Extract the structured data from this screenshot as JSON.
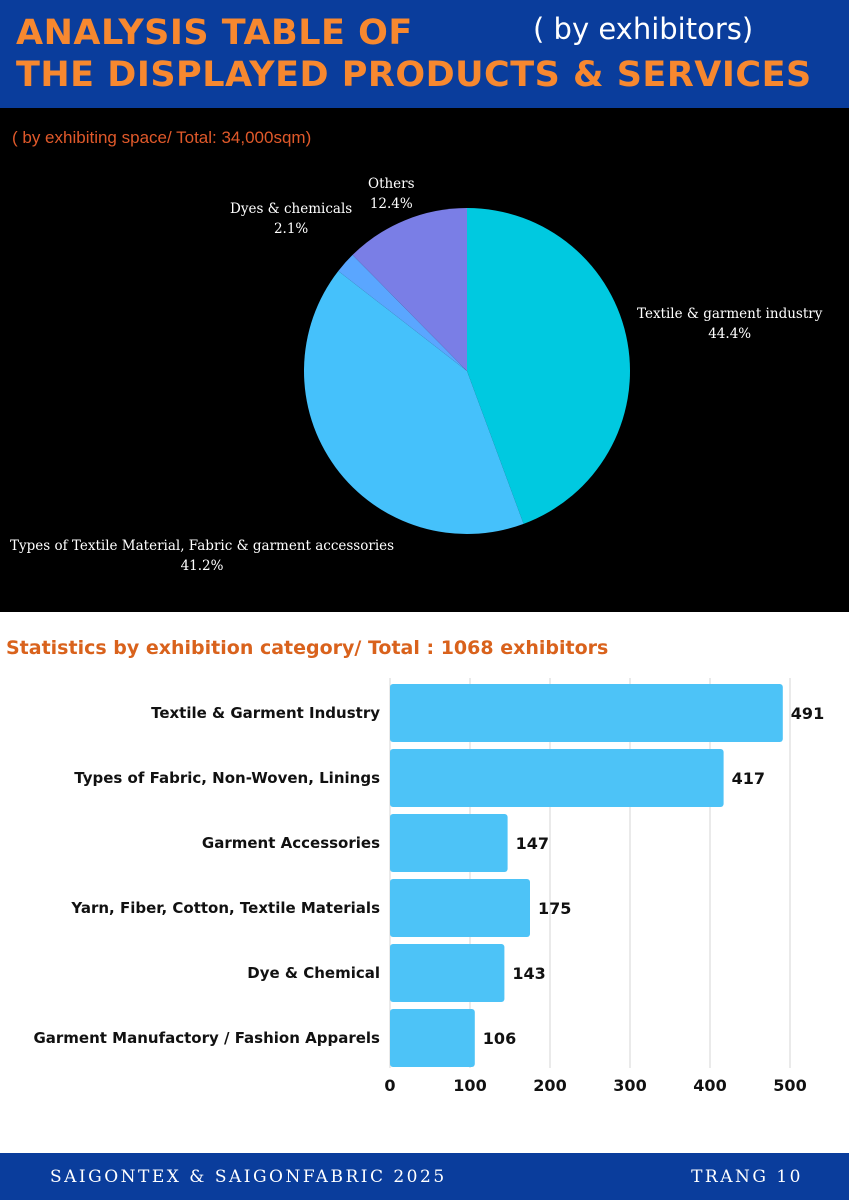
{
  "header": {
    "title_line1": "ANALYSIS TABLE OF",
    "title_line2": "THE DISPLAYED PRODUCTS & SERVICES",
    "subtitle": "( by exhibitors)"
  },
  "colors": {
    "header_bg": "#0a3d9c",
    "title_orange": "#f7882f",
    "pie_subtitle": "#e0592a",
    "bar_title": "#d9621c",
    "bar_fill": "#4dc3f7"
  },
  "chart_data": [
    {
      "type": "pie",
      "subtitle": "( by exhibiting space/ Total: 34,000sqm)",
      "slices": [
        {
          "label": "Textile & garment industry",
          "value": 44.4,
          "value_label": "44.4%",
          "color": "#00c9e0"
        },
        {
          "label": "Types of Textile Material, Fabric & garment accessories",
          "value": 41.2,
          "value_label": "41.2%",
          "color": "#45c1fb"
        },
        {
          "label": "Dyes & chemicals",
          "value": 2.1,
          "value_label": "2.1%",
          "color": "#5aa6ff"
        },
        {
          "label": "Others",
          "value": 12.4,
          "value_label": "12.4%",
          "color": "#7a7ee6"
        }
      ]
    },
    {
      "type": "bar",
      "orientation": "horizontal",
      "title": "Statistics by exhibition category/ Total : 1068 exhibitors",
      "categories": [
        "Textile & Garment Industry",
        "Types of Fabric, Non-Woven, Linings",
        "Garment Accessories",
        "Yarn, Fiber, Cotton, Textile Materials",
        "Dye & Chemical",
        "Garment Manufactory / Fashion Apparels"
      ],
      "values": [
        491,
        417,
        147,
        175,
        143,
        106
      ],
      "xlim": [
        0,
        500
      ],
      "xticks": [
        0,
        100,
        200,
        300,
        400,
        500
      ],
      "grid": true
    }
  ],
  "footer": {
    "left": "SAIGONTEX & SAIGONFABRIC 2025",
    "right": "TRANG 10"
  }
}
